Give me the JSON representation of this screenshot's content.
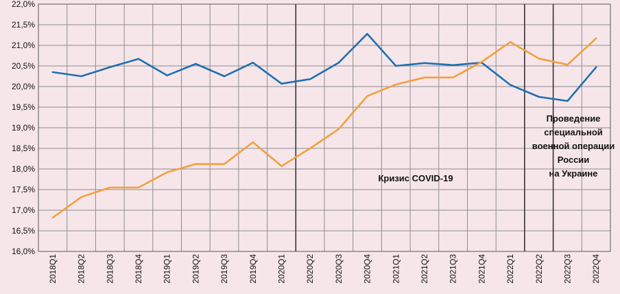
{
  "chart_data": {
    "type": "line",
    "categories": [
      "2018Q1",
      "2018Q2",
      "2018Q3",
      "2018Q4",
      "2019Q1",
      "2019Q2",
      "2019Q3",
      "2019Q4",
      "2020Q1",
      "2020Q2",
      "2020Q3",
      "2020Q4",
      "2021Q1",
      "2021Q2",
      "2021Q3",
      "2021Q4",
      "2022Q1",
      "2022Q2",
      "2022Q3",
      "2022Q4"
    ],
    "series": [
      {
        "color": "#1f6fb0",
        "values": [
          20.35,
          20.25,
          20.47,
          20.67,
          20.27,
          20.55,
          20.25,
          20.58,
          20.07,
          20.18,
          20.58,
          21.28,
          20.5,
          20.57,
          20.52,
          20.58,
          20.04,
          19.75,
          19.65,
          20.47
        ]
      },
      {
        "color": "#f2a03d",
        "values": [
          16.82,
          17.32,
          17.55,
          17.55,
          17.92,
          18.12,
          18.12,
          18.65,
          18.07,
          18.5,
          18.97,
          19.77,
          20.05,
          20.22,
          20.22,
          20.6,
          21.08,
          20.68,
          20.53,
          21.17
        ]
      }
    ],
    "ylim": [
      16.0,
      22.0
    ],
    "yticks": [
      "16,0%",
      "16,5%",
      "17,0%",
      "17,5%",
      "18,0%",
      "18,5%",
      "19,0%",
      "19,5%",
      "20,0%",
      "20,5%",
      "21,0%",
      "21,5%",
      "22,0%"
    ],
    "grid": true,
    "dividers_after": [
      "2020Q1",
      "2022Q1",
      "2022Q2"
    ],
    "annotations": [
      {
        "text": "Кризис COVID-19"
      },
      {
        "lines": [
          "Проведение",
          "специальной",
          "военной операции",
          "России",
          "на Украине"
        ]
      }
    ]
  }
}
